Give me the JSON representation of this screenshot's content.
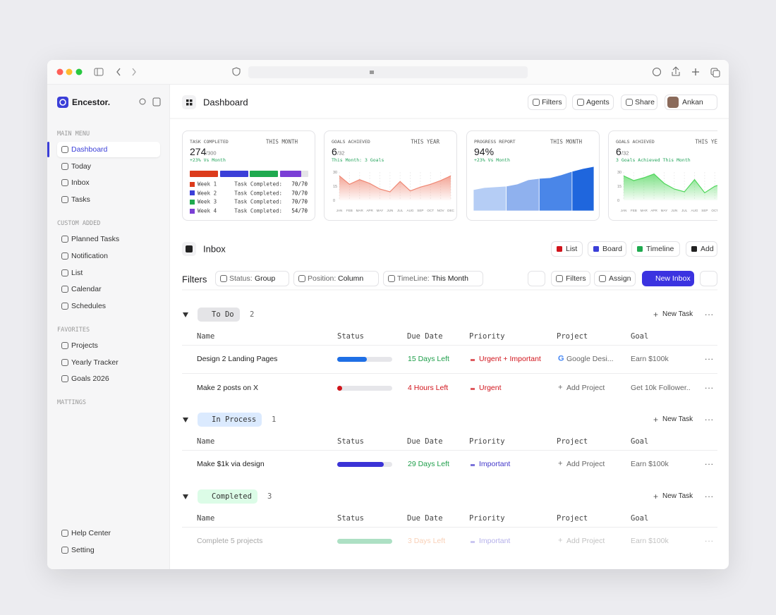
{
  "sidebar": {
    "brand": "Encestor.",
    "sections": [
      {
        "title": "MAIN MENU",
        "items": [
          "Dashboard",
          "Today",
          "Inbox",
          "Tasks"
        ]
      },
      {
        "title": "CUSTOM ADDED",
        "items": [
          "Planned Tasks",
          "Notification",
          "List",
          "Calendar",
          "Schedules"
        ]
      },
      {
        "title": "FAVORITES",
        "items": [
          "Projects",
          "Yearly Tracker",
          "Goals 2026"
        ]
      },
      {
        "title": "MATTINGS",
        "items": []
      }
    ],
    "footer": [
      "Help Center",
      "Setting"
    ]
  },
  "header": {
    "title": "Dashboard",
    "buttons": [
      "Filters",
      "Agents",
      "Share"
    ],
    "user": "Ankan"
  },
  "cards": [
    {
      "label": "TASK COMPLETED",
      "period": "THIS MONTH",
      "value": "274",
      "total": "/300",
      "note": "+23% Vs Month",
      "weeks": [
        {
          "name": "Week 1",
          "label": "Task Completed:",
          "value": "70/70",
          "color": "#dc3b1c"
        },
        {
          "name": "Week 2",
          "label": "Task Completed:",
          "value": "70/70",
          "color": "#3b3fd8"
        },
        {
          "name": "Week 3",
          "label": "Task Completed:",
          "value": "70/70",
          "color": "#1faa4f"
        },
        {
          "name": "Week 4",
          "label": "Task Completed:",
          "value": "54/70",
          "color": "#7b3fd6"
        }
      ]
    },
    {
      "label": "GOALS ACHIEVED",
      "period": "THIS YEAR",
      "value": "6",
      "total": "/32",
      "note": "This Month: 3 Goals",
      "chart": {
        "type": "area",
        "color": "#ef8672",
        "categories": [
          "JAN",
          "FEB",
          "MAR",
          "APR",
          "MAY",
          "JUN",
          "JUL",
          "AUG",
          "SEP",
          "OCT",
          "NOV",
          "DEC"
        ],
        "values": [
          26,
          17,
          22,
          18,
          12,
          9,
          20,
          10,
          14,
          17,
          21,
          26
        ],
        "ylim": [
          0,
          30
        ],
        "yticks": [
          0,
          15,
          30
        ]
      }
    },
    {
      "label": "PROGRESS REPORT",
      "period": "THIS MONTH",
      "value": "94%",
      "note": "+23% Vs Month",
      "chart": {
        "type": "step-area",
        "values": [
          30,
          33,
          34,
          35,
          38,
          44,
          46,
          47,
          51,
          56,
          60,
          63
        ],
        "colors": [
          "#b5cdf5",
          "#8fb1ee",
          "#4a86e8",
          "#1f66dd"
        ]
      }
    },
    {
      "label": "GOALS ACHIEVED",
      "period": "THIS YEAR",
      "value": "6",
      "total": "/32",
      "note": "3 Goals Achieved This Month",
      "chart": {
        "type": "area",
        "color": "#4fd65a",
        "categories": [
          "JAN",
          "FEB",
          "MAR",
          "APR",
          "MAY",
          "JUN",
          "JUL",
          "AUG",
          "SEP",
          "OCT",
          "NOV",
          "DEC"
        ],
        "values": [
          26,
          21,
          24,
          28,
          18,
          12,
          9,
          22,
          8,
          15,
          18,
          20
        ],
        "ylim": [
          0,
          30
        ],
        "yticks": [
          0,
          15,
          30
        ]
      }
    }
  ],
  "inbox": {
    "title": "Inbox",
    "views": [
      "List",
      "Board",
      "Timeline",
      "Add"
    ],
    "filters_label": "Filters",
    "dropdowns": [
      {
        "label": "Status:",
        "value": "Group"
      },
      {
        "label": "Position:",
        "value": "Column"
      },
      {
        "label": "TimeLine:",
        "value": "This Month"
      }
    ],
    "actions": [
      "Filters",
      "Assign"
    ],
    "primary": "New Inbox",
    "columns": [
      "Name",
      "Status",
      "Due Date",
      "Priority",
      "Project",
      "Goal"
    ],
    "new_task": "New Task",
    "groups": [
      {
        "name": "To Do",
        "count": "2",
        "color": "#e4e4e7",
        "rows": [
          {
            "name": "Design 2 Landing Pages",
            "progress": 54,
            "progress_color": "#1f6fe5",
            "due": "15 Days Left",
            "due_color": "#1e9e4a",
            "priority": "Urgent + Important",
            "priority_color": "#d1131b",
            "project": "Google Desi...",
            "goal": "Earn $100k"
          },
          {
            "name": "Make 2 posts on X",
            "progress": 6,
            "progress_color": "#d0141a",
            "due": "4 Hours Left",
            "due_color": "#d1131b",
            "priority": "Urgent",
            "priority_color": "#d1131b",
            "project": "Add Project",
            "goal": "Get 10k Follower.."
          }
        ]
      },
      {
        "name": "In Process",
        "count": "1",
        "color": "#dbeafe",
        "rows": [
          {
            "name": "Make $1k via design",
            "progress": 85,
            "progress_color": "#3b33d6",
            "due": "29 Days Left",
            "due_color": "#1e9e4a",
            "priority": "Important",
            "priority_color": "#4338ca",
            "project": "Add Project",
            "goal": "Earn $100k"
          }
        ]
      },
      {
        "name": "Completed",
        "count": "3",
        "color": "#dcfce7",
        "rows": [
          {
            "name": "Complete 5 projects",
            "progress": 100,
            "progress_color": "#34b46e",
            "due": "3 Days Left",
            "due_color": "#f08a4b",
            "priority": "Important",
            "priority_color": "#4338ca",
            "project": "Add Project",
            "goal": "Earn $100k",
            "muted": true
          }
        ]
      }
    ]
  }
}
